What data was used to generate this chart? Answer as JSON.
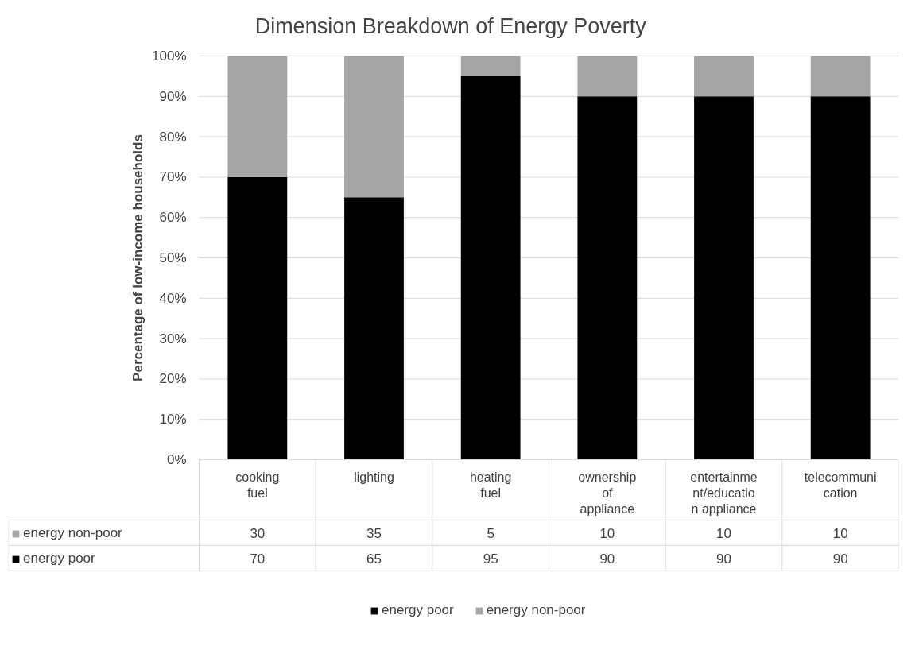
{
  "chart_data": {
    "type": "bar",
    "stacked": true,
    "title": "Dimension Breakdown of  Energy Poverty",
    "ylabel": "Percentage of low-income households",
    "categories": [
      "cooking fuel",
      "lighting",
      "heating fuel",
      "ownership of appliance",
      "entertainment/education appliance",
      "telecommunication"
    ],
    "series": [
      {
        "name": "energy poor",
        "color": "#000000",
        "values": [
          70,
          65,
          95,
          90,
          90,
          90
        ]
      },
      {
        "name": "energy non-poor",
        "color": "#a5a5a5",
        "values": [
          30,
          35,
          5,
          10,
          10,
          10
        ]
      }
    ],
    "ylim": [
      0,
      100
    ],
    "yticks": [
      {
        "value": 0,
        "label": "0%"
      },
      {
        "value": 10,
        "label": "10%"
      },
      {
        "value": 20,
        "label": "20%"
      },
      {
        "value": 30,
        "label": "30%"
      },
      {
        "value": 40,
        "label": "40%"
      },
      {
        "value": 50,
        "label": "50%"
      },
      {
        "value": 60,
        "label": "60%"
      },
      {
        "value": 70,
        "label": "70%"
      },
      {
        "value": 80,
        "label": "80%"
      },
      {
        "value": 90,
        "label": "90%"
      },
      {
        "value": 100,
        "label": "100%"
      }
    ],
    "grid": "y",
    "legend": "bottom",
    "data_labels": true
  }
}
